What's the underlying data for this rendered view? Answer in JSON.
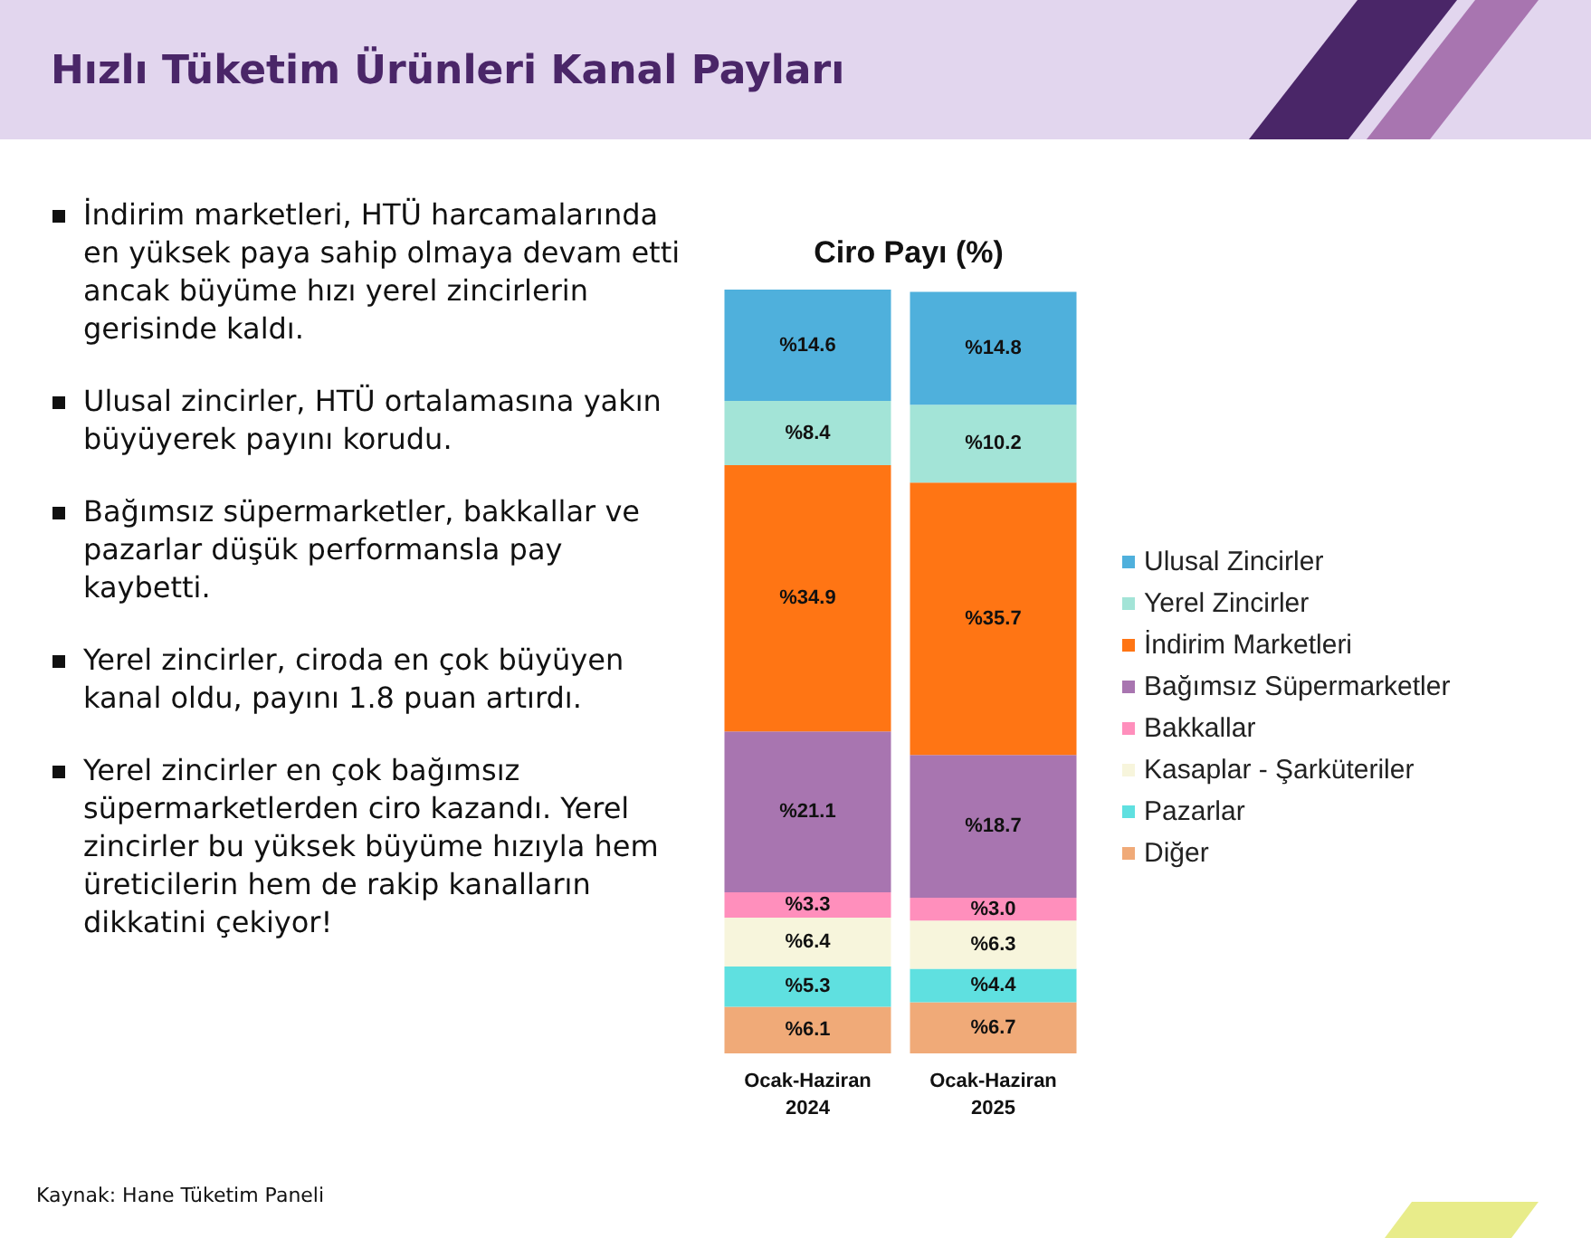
{
  "chart_data": {
    "type": "bar",
    "stacked": true,
    "title": "Hızlı Tüketim Ürünleri Kanal Payları",
    "subtitle": "Ciro Payı (%)",
    "categories": [
      "Ocak-Haziran 2024",
      "Ocak-Haziran 2025"
    ],
    "legend": "right",
    "tick_labels": "x",
    "series": [
      {
        "name": "Diğer",
        "color": "#f0aa78",
        "values": [
          6.1,
          6.7
        ],
        "value_labels": [
          "%6.1",
          "%6.7"
        ]
      },
      {
        "name": "Pazarlar",
        "color": "#5fe0e0",
        "values": [
          5.3,
          4.4
        ],
        "value_labels": [
          "%5.3",
          "%4.4"
        ]
      },
      {
        "name": "Kasaplar - Şarküteriler",
        "color": "#f7f5dc",
        "values": [
          6.4,
          6.3
        ],
        "value_labels": [
          "%6.4",
          "%6.3"
        ]
      },
      {
        "name": "Bakkallar",
        "color": "#ff8fbc",
        "values": [
          3.3,
          3.0
        ],
        "value_labels": [
          "%3.3",
          "%3.0"
        ]
      },
      {
        "name": "Bağımsız Süpermarketler",
        "color": "#a875b0",
        "values": [
          21.1,
          18.7
        ],
        "value_labels": [
          "%21.1",
          "%18.7"
        ]
      },
      {
        "name": "İndirim Marketleri",
        "color": "#ff7514",
        "values": [
          34.9,
          35.7
        ],
        "value_labels": [
          "%34.9",
          "%35.7"
        ]
      },
      {
        "name": "Yerel Zincirler",
        "color": "#a3e4d7",
        "values": [
          8.4,
          10.2
        ],
        "value_labels": [
          "%8.4",
          "%10.2"
        ]
      },
      {
        "name": "Ulusal Zincirler",
        "color": "#4fb0dc",
        "values": [
          14.6,
          14.8
        ],
        "value_labels": [
          "%14.6",
          "%14.8"
        ]
      }
    ],
    "annotations": [
      "İndirim marketleri, HTÜ harcamalarında en yüksek paya sahip olmaya devam etti ancak büyüme hızı yerel zincirlerin gerisinde kaldı.",
      "Ulusal zincirler, HTÜ ortalamasına yakın büyüyerek payını korudu.",
      "Bağımsız süpermarketler, bakkallar ve pazarlar düşük performansla pay kaybetti.",
      "Yerel zincirler, ciroda en çok büyüyen kanal oldu, payını 1.8 puan artırdı.",
      "Yerel zincirler en çok bağımsız süpermarketlerden ciro kazandı. Yerel zincirler bu yüksek büyüme hızıyla hem üreticilerin hem de rakip kanalların dikkatini çekiyor!",
      "Kaynak: Hane Tüketim Paneli"
    ]
  }
}
